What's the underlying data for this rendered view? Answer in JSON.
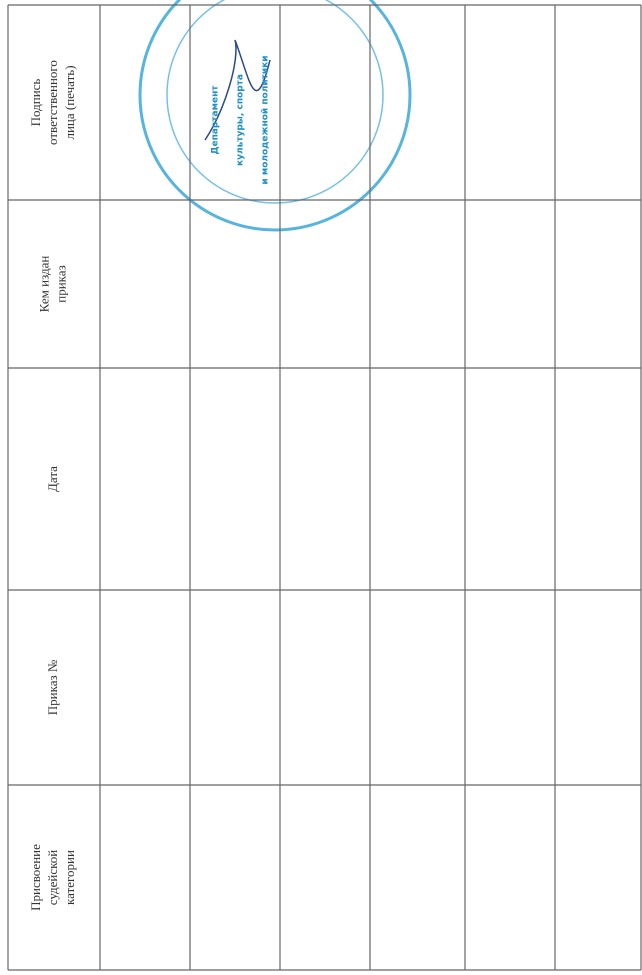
{
  "table": {
    "headers": [
      [
        "Подпись",
        "ответственного",
        "лица (печать)"
      ],
      [
        "Кем издан",
        "приказ"
      ],
      [
        "Дата"
      ],
      [
        "Приказ №"
      ],
      [
        "Присвоение",
        "судейской",
        "категории"
      ]
    ]
  },
  "stamp": {
    "lines": [
      "Департамент",
      "культуры, спорта",
      "и молодежной политики"
    ]
  }
}
